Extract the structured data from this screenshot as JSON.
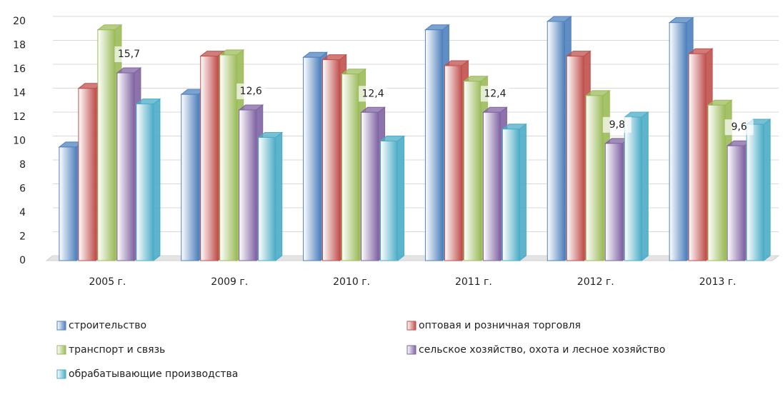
{
  "chart_data": {
    "type": "bar3d",
    "categories": [
      "2005 г.",
      "2009 г.",
      "2010 г.",
      "2011 г.",
      "2012 г.",
      "2013 г."
    ],
    "series": [
      {
        "name": "строительство",
        "color": "#4f81bd",
        "values": [
          9.5,
          13.9,
          17.0,
          19.3,
          20.0,
          19.9
        ]
      },
      {
        "name": "оптовая и розничная торговля",
        "color": "#c0504d",
        "values": [
          14.4,
          17.1,
          16.8,
          16.3,
          17.1,
          17.3
        ]
      },
      {
        "name": "транспорт и связь",
        "color": "#9bbb59",
        "values": [
          19.3,
          17.2,
          15.6,
          15.0,
          13.8,
          13.0
        ]
      },
      {
        "name": "сельское хозяйство, охота и лесное хозяйство",
        "color": "#8064a2",
        "values": [
          15.7,
          12.6,
          12.4,
          12.4,
          9.8,
          9.6
        ],
        "value_labels": [
          "15,7",
          "12,6",
          "12,4",
          "12,4",
          "9,8",
          "9,6"
        ]
      },
      {
        "name": "обрабатывающие производства",
        "color": "#4bacc6",
        "values": [
          13.1,
          10.3,
          10.0,
          11.0,
          12.0,
          11.4
        ]
      }
    ],
    "ylim": [
      0,
      20
    ],
    "yticks": [
      0,
      2,
      4,
      6,
      8,
      10,
      12,
      14,
      16,
      18,
      20
    ],
    "grid": true
  }
}
